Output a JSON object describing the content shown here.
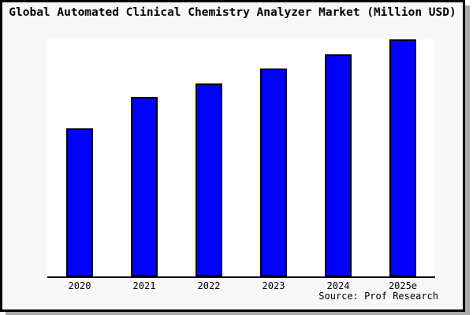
{
  "window": {
    "title": "Global Automated Clinical Chemistry Analyzer Market (Million USD)",
    "source_label": "Source: Prof Research"
  },
  "colors": {
    "window_background": "#f8f8f8",
    "plot_background": "#ffffff",
    "bar_fill": "#0000ff",
    "bar_border": "#000000",
    "axis": "#000000",
    "text": "#000000",
    "window_border": "#000000",
    "drop_shadow": "#a8a8a8"
  },
  "chart_data": {
    "type": "bar",
    "title": "Global Automated Clinical Chemistry Analyzer Market (Million USD)",
    "categories": [
      "2020",
      "2021",
      "2022",
      "2023",
      "2024",
      "2025e"
    ],
    "values": [
      62.6,
      75.6,
      81.5,
      87.7,
      93.7,
      100
    ],
    "value_unit": "percent of tallest bar (no y-axis scale labels shown in image)",
    "xlabel": "",
    "ylabel": "",
    "ylim": [
      0,
      100
    ],
    "grid": false,
    "legend": null,
    "y_axis_shown": false,
    "x_axis_line": true,
    "annotations": [
      "Source: Prof Research"
    ]
  }
}
